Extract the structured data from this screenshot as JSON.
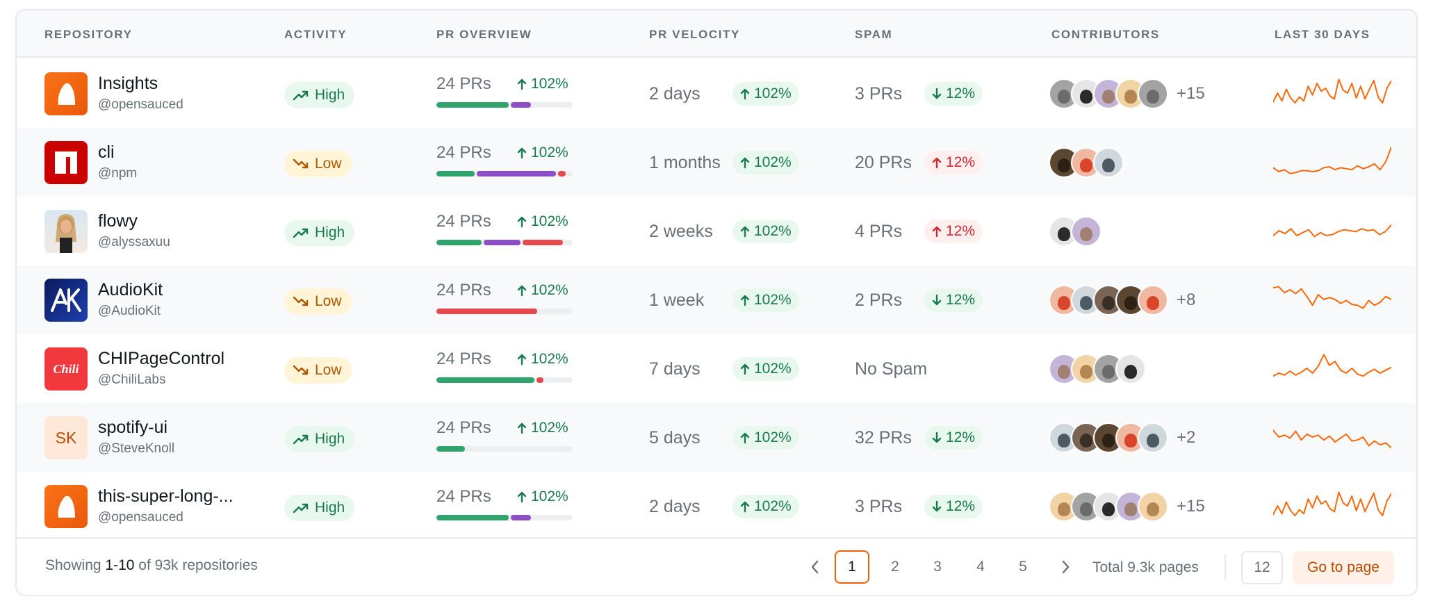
{
  "columns": {
    "repository": "REPOSITORY",
    "activity": "ACTIVITY",
    "pr_overview": "PR OVERVIEW",
    "pr_velocity": "PR VELOCITY",
    "spam": "SPAM",
    "contributors": "CONTRIBUTORS",
    "last30": "LAST 30 DAYS"
  },
  "colors": {
    "green": "#30a46c",
    "purple": "#8e4ec6",
    "red": "#e5484d",
    "spark": "#f76808"
  },
  "rows": [
    {
      "name": "Insights",
      "owner": "@opensauced",
      "logo": "opensauced",
      "activity": "High",
      "pr_count": "24 PRs",
      "pr_pct": "102%",
      "pr_bar": {
        "merged": 0.53,
        "open": 0.15,
        "closed": 0.0
      },
      "velocity": "2 days",
      "velocity_pct": "102%",
      "spam": "3 PRs",
      "spam_pct": "12%",
      "spam_dir": "down",
      "contributors_more": "+15",
      "spark": [
        12,
        30,
        14,
        38,
        20,
        10,
        22,
        14,
        44,
        26,
        50,
        34,
        40,
        24,
        18,
        58,
        36,
        30,
        50,
        20,
        44,
        18,
        38,
        56,
        22,
        10,
        40,
        55
      ]
    },
    {
      "name": "cli",
      "owner": "@npm",
      "logo": "npm",
      "activity": "Low",
      "pr_count": "24 PRs",
      "pr_pct": "102%",
      "pr_bar": {
        "merged": 0.28,
        "open": 0.58,
        "closed": 0.06
      },
      "velocity": "1 months",
      "velocity_pct": "102%",
      "spam": "20 PRs",
      "spam_pct": "12%",
      "spam_dir": "up",
      "contributors_more": "",
      "spark": [
        18,
        10,
        14,
        6,
        8,
        12,
        12,
        10,
        12,
        18,
        20,
        14,
        18,
        16,
        14,
        22,
        16,
        20,
        26,
        14,
        30,
        60
      ]
    },
    {
      "name": "flowy",
      "owner": "@alyssaxuu",
      "logo": "flowy",
      "activity": "High",
      "pr_count": "24 PRs",
      "pr_pct": "102%",
      "pr_bar": {
        "merged": 0.33,
        "open": 0.27,
        "closed": 0.3
      },
      "velocity": "2 weeks",
      "velocity_pct": "102%",
      "spam": "4 PRs",
      "spam_pct": "12%",
      "spam_dir": "up",
      "contributors_more": "",
      "spark": [
        20,
        30,
        24,
        34,
        20,
        26,
        32,
        18,
        26,
        20,
        22,
        28,
        32,
        30,
        28,
        34,
        30,
        32,
        22,
        28,
        42
      ]
    },
    {
      "name": "AudioKit",
      "owner": "@AudioKit",
      "logo": "audiokit",
      "activity": "Low",
      "pr_count": "24 PRs",
      "pr_pct": "102%",
      "pr_bar": {
        "merged": 0.0,
        "open": 0.0,
        "closed": 0.74
      },
      "velocity": "1 week",
      "velocity_pct": "102%",
      "spam": "2 PRs",
      "spam_pct": "12%",
      "spam_dir": "down",
      "contributors_more": "+8",
      "spark": [
        54,
        56,
        44,
        50,
        42,
        52,
        36,
        18,
        40,
        30,
        34,
        30,
        22,
        28,
        20,
        18,
        12,
        28,
        18,
        24,
        36,
        30
      ]
    },
    {
      "name": "CHIPageControl",
      "owner": "@ChiliLabs",
      "logo": "chili",
      "activity": "Low",
      "pr_count": "24 PRs",
      "pr_pct": "102%",
      "pr_bar": {
        "merged": 0.72,
        "open": 0.0,
        "closed": 0.05
      },
      "velocity": "7 days",
      "velocity_pct": "102%",
      "spam_none": "No Spam",
      "contributors_more": "",
      "spark": [
        14,
        20,
        16,
        24,
        16,
        22,
        30,
        20,
        34,
        58,
        36,
        44,
        26,
        20,
        30,
        18,
        14,
        22,
        28,
        20,
        26,
        32
      ]
    },
    {
      "name": "spotify-ui",
      "owner": "@SteveKnoll",
      "logo": "sk",
      "logo_text": "SK",
      "activity": "High",
      "pr_count": "24 PRs",
      "pr_pct": "102%",
      "pr_bar": {
        "merged": 0.21,
        "open": 0.0,
        "closed": 0.0
      },
      "velocity": "5 days",
      "velocity_pct": "102%",
      "spam": "32 PRs",
      "spam_pct": "12%",
      "spam_dir": "down",
      "contributors_more": "+2",
      "spark": [
        44,
        30,
        34,
        28,
        42,
        24,
        36,
        30,
        34,
        24,
        32,
        20,
        28,
        36,
        22,
        24,
        30,
        12,
        22,
        14,
        18,
        8
      ]
    },
    {
      "name": "this-super-long-...",
      "owner": "@opensauced",
      "logo": "opensauced",
      "activity": "High",
      "pr_count": "24 PRs",
      "pr_pct": "102%",
      "pr_bar": {
        "merged": 0.53,
        "open": 0.15,
        "closed": 0.0
      },
      "velocity": "2 days",
      "velocity_pct": "102%",
      "spam": "3 PRs",
      "spam_pct": "12%",
      "spam_dir": "down",
      "contributors_more": "+15",
      "spark": [
        12,
        30,
        14,
        38,
        20,
        10,
        22,
        14,
        44,
        26,
        50,
        34,
        40,
        24,
        18,
        58,
        36,
        30,
        50,
        20,
        44,
        18,
        38,
        56,
        22,
        10,
        40,
        55
      ]
    }
  ],
  "footer": {
    "showing_prefix": "Showing",
    "showing_range": "1-10",
    "showing_suffix": "of 93k repositories",
    "pages": [
      "1",
      "2",
      "3",
      "4",
      "5"
    ],
    "current_page": "1",
    "total_pages": "Total 9.3k pages",
    "goto_value": "12",
    "goto_label": "Go to page"
  }
}
